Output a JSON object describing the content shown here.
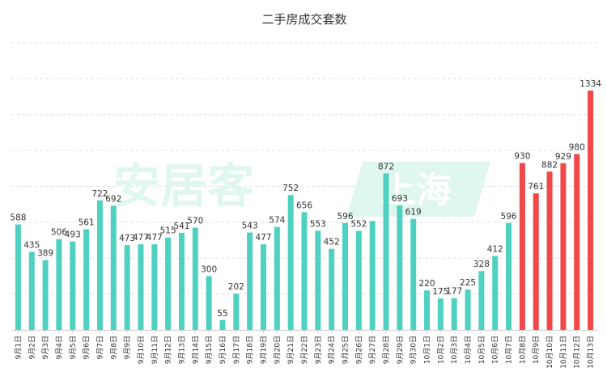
{
  "chart_data": {
    "type": "bar",
    "title": "二手房成交套数",
    "watermark": {
      "text": "安居客",
      "badge_text": "上海"
    },
    "colors": {
      "normal": "#4fd1c1",
      "highlight": "#f2484a",
      "grid": "#e0e0e0",
      "axis": "#cccccc",
      "watermark": "#dff7ee"
    },
    "ylim": [
      0,
      1600
    ],
    "grid": true,
    "grid_style": "dashed",
    "categories": [
      "9月1日",
      "9月2日",
      "9月3日",
      "9月4日",
      "9月5日",
      "9月6日",
      "9月7日",
      "9月8日",
      "9月9日",
      "9月10日",
      "9月11日",
      "9月12日",
      "9月13日",
      "9月14日",
      "9月15日",
      "9月16日",
      "9月17日",
      "9月18日",
      "9月19日",
      "9月20日",
      "9月21日",
      "9月22日",
      "9月23日",
      "9月24日",
      "9月25日",
      "9月26日",
      "9月27日",
      "9月28日",
      "9月29日",
      "9月30日",
      "10月1日",
      "10月2日",
      "10月3日",
      "10月4日",
      "10月5日",
      "10月6日",
      "10月7日",
      "10月8日",
      "10月9日",
      "10月10日",
      "10月11日",
      "10月12日",
      "10月13日"
    ],
    "values": [
      588,
      435,
      389,
      506,
      493,
      561,
      722,
      692,
      473,
      477,
      477,
      515,
      541,
      570,
      300,
      55,
      202,
      543,
      477,
      574,
      752,
      656,
      553,
      452,
      596,
      552,
      607,
      872,
      693,
      619,
      220,
      175,
      177,
      225,
      328,
      412,
      596,
      930,
      761,
      882,
      929,
      980,
      1334
    ],
    "data_labels_shown": [
      true,
      true,
      true,
      true,
      true,
      true,
      true,
      true,
      true,
      true,
      true,
      true,
      true,
      true,
      true,
      true,
      true,
      true,
      true,
      true,
      true,
      true,
      true,
      true,
      true,
      true,
      false,
      true,
      true,
      true,
      true,
      true,
      true,
      true,
      true,
      true,
      true,
      true,
      true,
      true,
      true,
      true,
      true
    ],
    "highlight_from_index": 37
  }
}
